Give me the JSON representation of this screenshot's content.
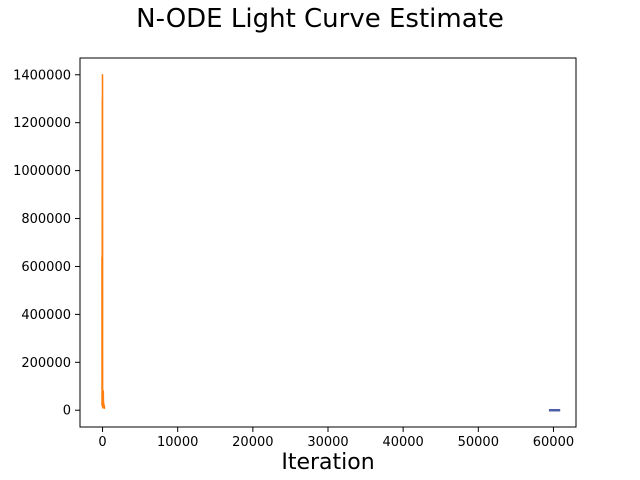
{
  "chart_data": {
    "type": "line",
    "title": "N-ODE Light Curve Estimate",
    "xlabel": "Iteration",
    "ylabel": "",
    "xlim": [
      -3000,
      63000
    ],
    "ylim": [
      -70000,
      1470000
    ],
    "x_ticks": [
      0,
      10000,
      20000,
      30000,
      40000,
      50000,
      60000
    ],
    "x_tick_labels": [
      "0",
      "10000",
      "20000",
      "30000",
      "40000",
      "50000",
      "60000"
    ],
    "y_ticks": [
      0,
      200000,
      400000,
      600000,
      800000,
      1000000,
      1200000,
      1400000
    ],
    "y_tick_labels": [
      "0",
      "200000",
      "400000",
      "600000",
      "800000",
      "1000000",
      "1200000",
      "1400000"
    ],
    "grid": false,
    "series": [
      {
        "color": "#4c5fa8",
        "points": [
          [
            59400,
            0
          ],
          [
            59700,
            0
          ],
          [
            60000,
            0
          ],
          [
            60300,
            0
          ],
          [
            60600,
            0
          ],
          [
            60900,
            0
          ]
        ]
      },
      {
        "color": "#ff7f0e",
        "points": [
          [
            -80,
            640000
          ],
          [
            -70,
            20000
          ],
          [
            -60,
            400000
          ],
          [
            -50,
            60000
          ],
          [
            -40,
            980000
          ],
          [
            -30,
            1300000
          ],
          [
            -20,
            30000
          ],
          [
            -10,
            1400000
          ],
          [
            0,
            1380000
          ],
          [
            10,
            50000
          ],
          [
            30,
            10000
          ],
          [
            60,
            20000
          ],
          [
            100,
            80000
          ],
          [
            130,
            15000
          ],
          [
            160,
            30000
          ],
          [
            190,
            10000
          ],
          [
            230,
            20000
          ],
          [
            260,
            8000
          ],
          [
            300,
            12000
          ]
        ]
      }
    ]
  }
}
